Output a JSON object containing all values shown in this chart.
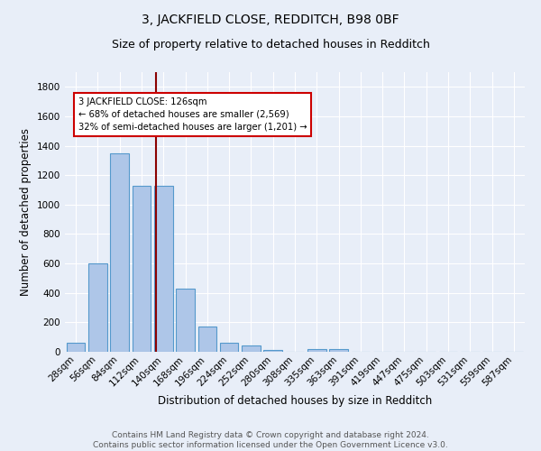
{
  "title": "3, JACKFIELD CLOSE, REDDITCH, B98 0BF",
  "subtitle": "Size of property relative to detached houses in Redditch",
  "xlabel": "Distribution of detached houses by size in Redditch",
  "ylabel": "Number of detached properties",
  "footer_line1": "Contains HM Land Registry data © Crown copyright and database right 2024.",
  "footer_line2": "Contains public sector information licensed under the Open Government Licence v3.0.",
  "bar_labels": [
    "28sqm",
    "56sqm",
    "84sqm",
    "112sqm",
    "140sqm",
    "168sqm",
    "196sqm",
    "224sqm",
    "252sqm",
    "280sqm",
    "308sqm",
    "335sqm",
    "363sqm",
    "391sqm",
    "419sqm",
    "447sqm",
    "475sqm",
    "503sqm",
    "531sqm",
    "559sqm",
    "587sqm"
  ],
  "bar_values": [
    60,
    600,
    1350,
    1125,
    1125,
    430,
    170,
    60,
    40,
    15,
    0,
    20,
    20,
    0,
    0,
    0,
    0,
    0,
    0,
    0,
    0
  ],
  "bar_color": "#aec6e8",
  "bar_edge_color": "#5599cc",
  "vline_x_index": 3.65,
  "vline_color": "#8b0000",
  "annotation_text": "3 JACKFIELD CLOSE: 126sqm\n← 68% of detached houses are smaller (2,569)\n32% of semi-detached houses are larger (1,201) →",
  "ylim": [
    0,
    1900
  ],
  "background_color": "#e8eef8",
  "plot_bg_color": "#e8eef8",
  "grid_color": "#ffffff",
  "title_fontsize": 10,
  "subtitle_fontsize": 9,
  "label_fontsize": 8.5,
  "tick_fontsize": 7.5,
  "footer_fontsize": 6.5
}
